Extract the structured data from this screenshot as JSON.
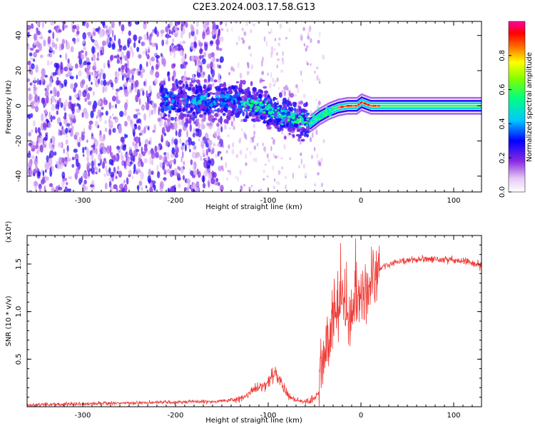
{
  "title": "C2E3.2024.003.17.58.G13",
  "chart_data": [
    {
      "type": "heatmap",
      "xlabel": "Height of straight line (km)",
      "ylabel": "Frequency (Hz)",
      "xlim": [
        -360,
        130
      ],
      "ylim": [
        -49,
        48
      ],
      "xticks": [
        -300,
        -200,
        -100,
        0,
        100
      ],
      "yticks": [
        -40,
        -20,
        0,
        20,
        40
      ],
      "colorbar": {
        "label": "Normalized spectral amplitude",
        "range": [
          0,
          1
        ],
        "ticks": [
          "0.0",
          "0.2",
          "0.4",
          "0.6",
          "0.8"
        ],
        "colormap": "rainbow (white-violet-blue-cyan-green-yellow-red-magenta)"
      },
      "ridge": {
        "description": "frequency of strongest amplitude vs height",
        "x": [
          -200,
          -160,
          -130,
          -110,
          -90,
          -70,
          -55,
          -45,
          -35,
          -25,
          -15,
          -5,
          0,
          10,
          130
        ],
        "y": [
          3,
          3,
          2,
          0,
          -4,
          -8,
          -10,
          -6,
          -3,
          -1,
          0,
          0,
          2,
          0,
          0
        ]
      }
    },
    {
      "type": "line",
      "xlabel": "Height of straight line (km)",
      "ylabel": "SNR (10 * v/v)",
      "yscale_label": "(x10⁴)",
      "xlim": [
        -360,
        130
      ],
      "ylim": [
        0,
        1.8
      ],
      "xticks": [
        -300,
        -200,
        -100,
        0,
        100
      ],
      "yticks": [
        "0.5",
        "1.0",
        "1.5"
      ],
      "color": "#ef3b36",
      "series": [
        {
          "x": [
            -360,
            -300,
            -250,
            -200,
            -150,
            -130,
            -115,
            -100,
            -92,
            -85,
            -78,
            -70,
            -60,
            -50,
            -45,
            -40,
            -35,
            -30,
            -25,
            -20,
            -15,
            -10,
            -5,
            0,
            5,
            10,
            20,
            30,
            40,
            60,
            80,
            100,
            115,
            130
          ],
          "values": [
            0.02,
            0.03,
            0.04,
            0.05,
            0.06,
            0.08,
            0.18,
            0.25,
            0.35,
            0.22,
            0.12,
            0.07,
            0.05,
            0.08,
            0.15,
            0.5,
            0.75,
            0.9,
            1.0,
            1.05,
            0.95,
            1.05,
            1.1,
            1.15,
            1.2,
            1.3,
            1.45,
            1.5,
            1.52,
            1.55,
            1.55,
            1.54,
            1.52,
            1.5
          ]
        }
      ]
    }
  ]
}
